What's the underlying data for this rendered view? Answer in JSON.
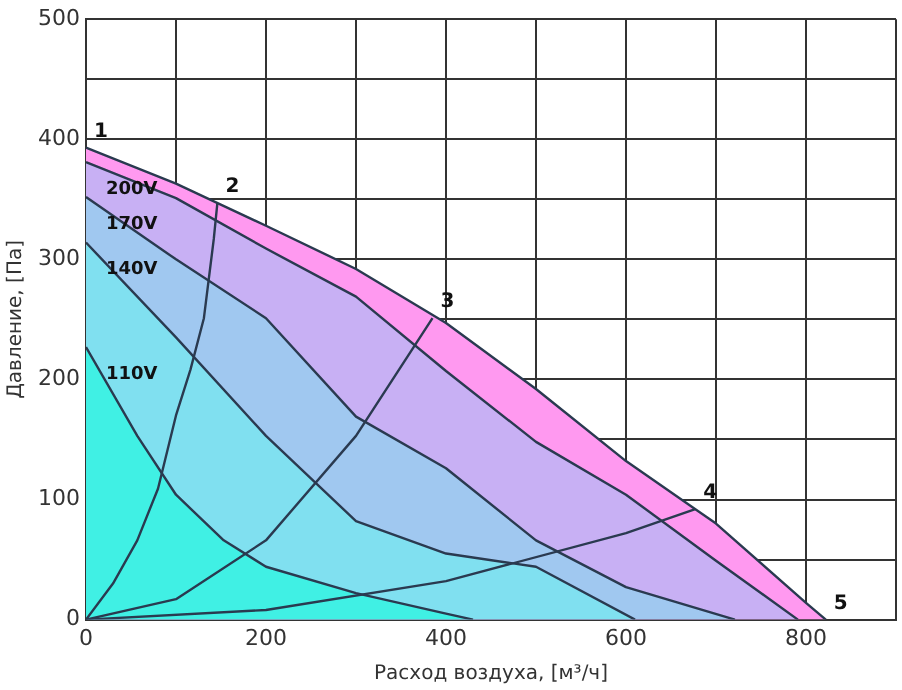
{
  "chart_data": {
    "type": "area",
    "xlabel": "Расход воздуха, [м³/ч]",
    "ylabel": "Давление, [Па]",
    "xlim": [
      0,
      900
    ],
    "ylim": [
      0,
      500
    ],
    "xticks": [
      0,
      {
        "value": 100,
        "label": null
      },
      200,
      {
        "value": 300,
        "label": null
      },
      400,
      {
        "value": 500,
        "label": null
      },
      600,
      {
        "value": 700,
        "label": null
      },
      800,
      {
        "value": 900,
        "label": null
      }
    ],
    "yticks": [
      0,
      {
        "value": 50,
        "label": null
      },
      100,
      {
        "value": 150,
        "label": null
      },
      200,
      {
        "value": 250,
        "label": null
      },
      300,
      {
        "value": 350,
        "label": null
      },
      400,
      {
        "value": 450,
        "label": null
      },
      500
    ],
    "grid": true,
    "legend": false,
    "marker": "none",
    "line_style": "solid",
    "series": [
      {
        "color": "#ff99f0",
        "x": [
          0,
          100,
          200,
          300,
          400,
          500,
          600,
          700,
          800,
          822
        ],
        "values": [
          393,
          363,
          328,
          292,
          247,
          192,
          132,
          80,
          14,
          0
        ]
      },
      {
        "name": "200V",
        "color": "#c8b0f4",
        "x": [
          0,
          100,
          200,
          300,
          400,
          500,
          600,
          700,
          791
        ],
        "values": [
          381,
          351,
          309,
          269,
          207,
          148,
          104,
          49,
          0
        ]
      },
      {
        "name": "170V",
        "color": "#a0c8f0",
        "x": [
          0,
          100,
          200,
          300,
          400,
          500,
          600,
          721
        ],
        "values": [
          352,
          300,
          251,
          169,
          126,
          66,
          27,
          0
        ]
      },
      {
        "name": "140V",
        "color": "#80e0f0",
        "x": [
          0,
          100,
          200,
          300,
          400,
          500,
          610
        ],
        "values": [
          314,
          235,
          153,
          82,
          55,
          44,
          0
        ]
      },
      {
        "name": "110V",
        "color": "#40f0e4",
        "x": [
          0,
          57,
          100,
          153,
          200,
          300,
          400,
          430
        ],
        "values": [
          227,
          153,
          104,
          66,
          44,
          22,
          5,
          0
        ]
      },
      {
        "type": "line",
        "color": "#2a3a50",
        "x": [
          0,
          30,
          57,
          80,
          100,
          116,
          131,
          142,
          146
        ],
        "values": [
          0,
          30,
          66,
          109,
          170,
          208,
          251,
          317,
          347
        ]
      },
      {
        "type": "line",
        "color": "#2a3a50",
        "x": [
          0,
          100,
          200,
          300,
          385
        ],
        "values": [
          0,
          17,
          66,
          153,
          251
        ]
      },
      {
        "type": "line",
        "color": "#2a3a50",
        "x": [
          0,
          200,
          400,
          600,
          677
        ],
        "values": [
          0,
          8,
          32,
          72,
          92
        ]
      }
    ],
    "annotations": [
      {
        "text": "1",
        "x": 0,
        "y": 393
      },
      {
        "text": "2",
        "x": 146,
        "y": 347
      },
      {
        "text": "3",
        "x": 385,
        "y": 251
      },
      {
        "text": "4",
        "x": 677,
        "y": 92
      },
      {
        "text": "5",
        "x": 822,
        "y": 0
      }
    ]
  }
}
